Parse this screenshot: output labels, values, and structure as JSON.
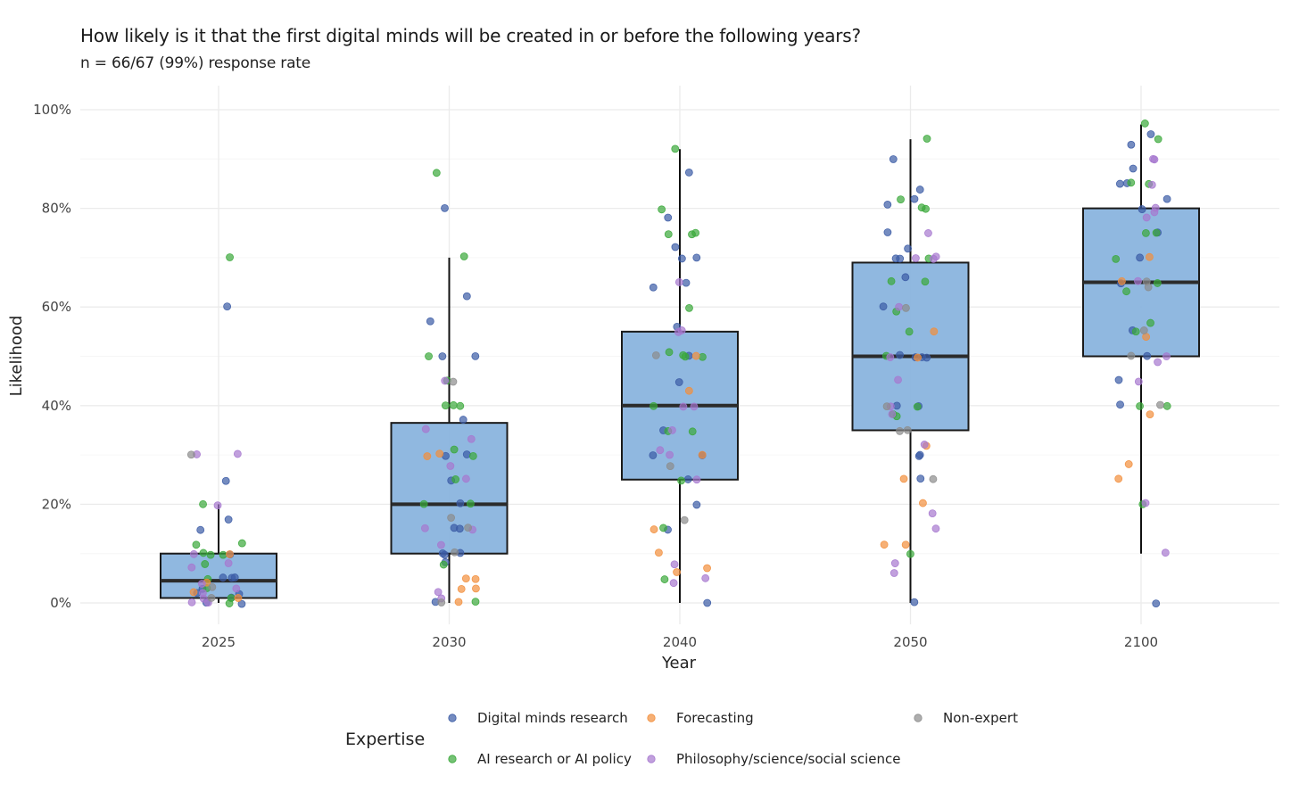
{
  "chart_data": {
    "type": "boxplot",
    "title": "How likely is it that the first digital minds will be created in or before the following years?",
    "subtitle": "n = 66/67 (99%) response rate",
    "xlabel": "Year",
    "ylabel": "Likelihood",
    "ylim": [
      0,
      100
    ],
    "y_ticks": [
      "0%",
      "20%",
      "40%",
      "60%",
      "80%",
      "100%"
    ],
    "y_tick_values": [
      0,
      20,
      40,
      60,
      80,
      100
    ],
    "categories": [
      "2025",
      "2030",
      "2040",
      "2050",
      "2100"
    ],
    "grid": true,
    "box_color": "#8ab4de",
    "boxes": [
      {
        "category": "2025",
        "whisker_low": 0,
        "q1": 1,
        "median": 4.5,
        "q3": 10,
        "whisker_high": 20
      },
      {
        "category": "2030",
        "whisker_low": 0,
        "q1": 10,
        "median": 20,
        "q3": 36.5,
        "whisker_high": 70
      },
      {
        "category": "2040",
        "whisker_low": 0,
        "q1": 25,
        "median": 40,
        "q3": 55,
        "whisker_high": 92
      },
      {
        "category": "2050",
        "whisker_low": 0,
        "q1": 35,
        "median": 50,
        "q3": 69,
        "whisker_high": 94
      },
      {
        "category": "2100",
        "whisker_low": 10,
        "q1": 50,
        "median": 65,
        "q3": 80,
        "whisker_high": 97
      }
    ],
    "legend": {
      "title": "Expertise",
      "position": "bottom",
      "entries": [
        {
          "key": "dm",
          "label": "Digital minds research",
          "color": "#3b5ba5"
        },
        {
          "key": "fc",
          "label": "Forecasting",
          "color": "#f28e3c"
        },
        {
          "key": "ne",
          "label": "Non-expert",
          "color": "#8c8c8c"
        },
        {
          "key": "ai",
          "label": "AI research or AI policy",
          "color": "#3aa83a"
        },
        {
          "key": "ph",
          "label": "Philosophy/science/social science",
          "color": "#a678cf"
        }
      ]
    },
    "series": [
      {
        "name": "Digital minds research",
        "key": "dm",
        "points": {
          "2025": [
            60,
            25,
            17,
            15,
            10,
            5,
            5,
            5,
            3,
            2,
            2,
            1,
            0,
            0
          ],
          "2030": [
            80,
            62,
            57,
            50,
            50,
            37,
            30,
            30,
            25,
            20,
            15,
            15,
            10,
            10,
            10,
            8,
            0
          ],
          "2040": [
            87,
            78,
            72,
            70,
            70,
            65,
            64,
            56,
            50,
            45,
            35,
            30,
            30,
            25,
            20,
            15,
            0
          ],
          "2050": [
            90,
            84,
            82,
            81,
            75,
            72,
            70,
            70,
            66,
            60,
            50,
            50,
            50,
            50,
            40,
            40,
            30,
            30,
            25,
            0
          ],
          "2100": [
            95,
            93,
            88,
            85,
            85,
            82,
            80,
            75,
            70,
            65,
            55,
            50,
            45,
            40,
            0
          ]
        }
      },
      {
        "name": "AI research or AI policy",
        "key": "ai",
        "points": {
          "2025": [
            70,
            20,
            12,
            12,
            10,
            10,
            10,
            8,
            5,
            3,
            1,
            0
          ],
          "2030": [
            87,
            70,
            50,
            45,
            40,
            40,
            40,
            31,
            30,
            25,
            20,
            20,
            8,
            0
          ],
          "2040": [
            92,
            80,
            75,
            75,
            75,
            60,
            51,
            50,
            50,
            50,
            40,
            35,
            35,
            25,
            15,
            5
          ],
          "2050": [
            94,
            82,
            80,
            80,
            70,
            65,
            65,
            59,
            55,
            50,
            40,
            38,
            38,
            10
          ],
          "2100": [
            97,
            94,
            85,
            85,
            75,
            75,
            70,
            65,
            63,
            57,
            55,
            40,
            40,
            20
          ]
        }
      },
      {
        "name": "Forecasting",
        "key": "fc",
        "points": {
          "2025": [
            10,
            4,
            2,
            1
          ],
          "2030": [
            30,
            30,
            5,
            5,
            3,
            3,
            0
          ],
          "2040": [
            50,
            43,
            30,
            15,
            10,
            7,
            6
          ],
          "2050": [
            55,
            50,
            32,
            25,
            20,
            12,
            12
          ],
          "2100": [
            70,
            65,
            54,
            38,
            28,
            25
          ]
        }
      },
      {
        "name": "Philosophy/science/social science",
        "key": "ph",
        "points": {
          "2025": [
            30,
            30,
            20,
            10,
            8,
            7,
            4,
            3,
            2,
            1,
            0,
            0
          ],
          "2030": [
            45,
            35,
            33,
            28,
            25,
            15,
            15,
            12,
            2,
            1
          ],
          "2040": [
            65,
            55,
            55,
            40,
            40,
            35,
            31,
            30,
            25,
            8,
            5,
            4
          ],
          "2050": [
            75,
            70,
            70,
            70,
            60,
            50,
            45,
            40,
            38,
            32,
            18,
            15,
            8,
            6
          ],
          "2100": [
            90,
            90,
            85,
            80,
            79,
            78,
            65,
            50,
            49,
            45,
            20,
            10
          ]
        }
      },
      {
        "name": "Non-expert",
        "key": "ne",
        "points": {
          "2025": [
            30,
            3,
            1
          ],
          "2030": [
            45,
            17,
            15,
            10,
            0
          ],
          "2040": [
            50,
            28,
            17
          ],
          "2050": [
            60,
            40,
            35,
            35,
            25
          ],
          "2100": [
            65,
            64,
            55,
            50,
            40
          ]
        }
      }
    ]
  }
}
